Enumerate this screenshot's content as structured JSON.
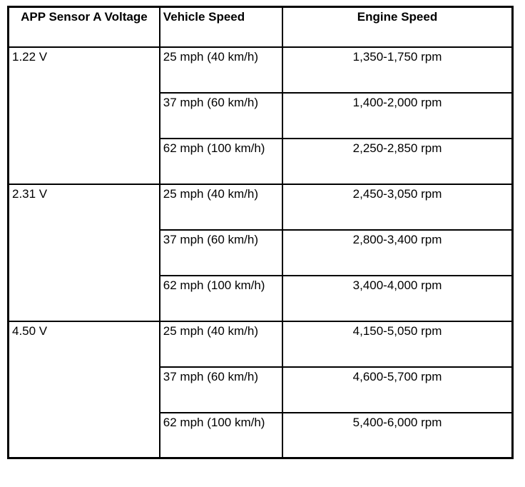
{
  "table": {
    "headers": {
      "voltage": "APP Sensor A Voltage",
      "vehicle_speed": "Vehicle Speed",
      "engine_speed": "Engine Speed"
    },
    "groups": [
      {
        "voltage": "1.22 V",
        "rows": [
          {
            "vehicle_speed": "25 mph (40 km/h)",
            "engine_speed": "1,350-1,750 rpm"
          },
          {
            "vehicle_speed": "37 mph (60 km/h)",
            "engine_speed": "1,400-2,000 rpm"
          },
          {
            "vehicle_speed": "62 mph (100 km/h)",
            "engine_speed": "2,250-2,850 rpm"
          }
        ]
      },
      {
        "voltage": "2.31 V",
        "rows": [
          {
            "vehicle_speed": "25 mph (40 km/h)",
            "engine_speed": "2,450-3,050 rpm"
          },
          {
            "vehicle_speed": "37 mph (60 km/h)",
            "engine_speed": "2,800-3,400 rpm"
          },
          {
            "vehicle_speed": "62 mph (100 km/h)",
            "engine_speed": "3,400-4,000 rpm"
          }
        ]
      },
      {
        "voltage": "4.50 V",
        "rows": [
          {
            "vehicle_speed": "25 mph (40 km/h)",
            "engine_speed": "4,150-5,050 rpm"
          },
          {
            "vehicle_speed": "37 mph (60 km/h)",
            "engine_speed": "4,600-5,700 rpm"
          },
          {
            "vehicle_speed": "62 mph (100 km/h)",
            "engine_speed": "5,400-6,000 rpm"
          }
        ]
      }
    ]
  }
}
